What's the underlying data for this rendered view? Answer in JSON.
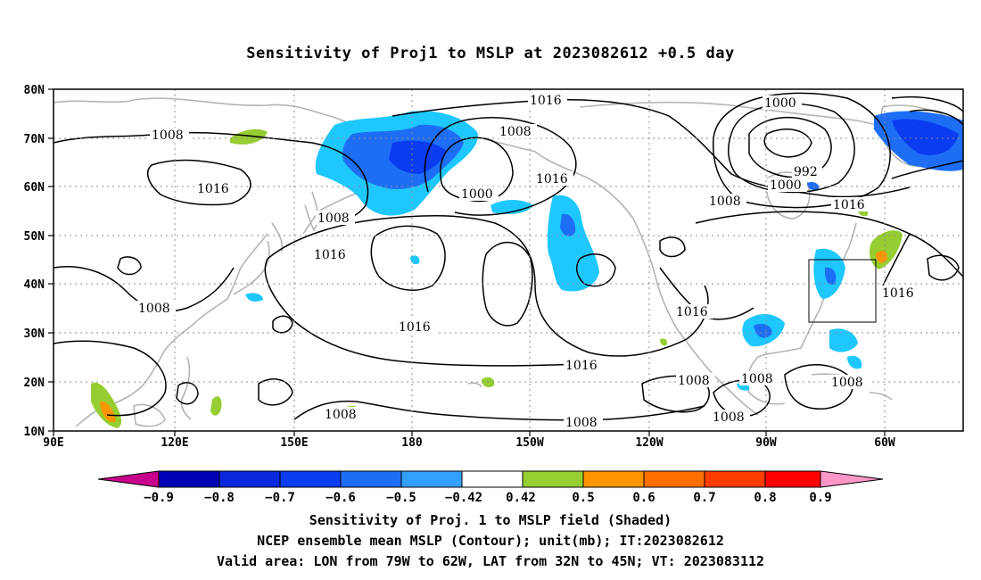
{
  "title": "Sensitivity of Proj1 to MSLP at 2023082612 +0.5 day",
  "map": {
    "lat_labels": [
      "80N",
      "70N",
      "60N",
      "50N",
      "40N",
      "30N",
      "20N",
      "10N"
    ],
    "lon_labels": [
      "90E",
      "120E",
      "150E",
      "180",
      "150W",
      "120W",
      "90W",
      "60W"
    ],
    "contour_labels": {
      "c1": "1016",
      "c2": "1008",
      "c3": "1008",
      "c4": "1016",
      "c5": "1000",
      "c6": "1016",
      "c7": "1000",
      "c8": "992",
      "c9": "1000",
      "c10": "1008",
      "c11": "1016",
      "c12": "1008",
      "c13": "1016",
      "c14": "1008",
      "c15": "1016",
      "c16": "1016",
      "c17": "1016",
      "c18": "1016",
      "c19": "1008",
      "c20": "1008",
      "c21": "1008",
      "c22": "1008",
      "c23": "1008",
      "c24": "1008"
    },
    "colors": {
      "coast": "#b4b4b4",
      "neg_strong": "#0a3cf0",
      "neg_mid": "#1e6ef5",
      "neg_weak": "#1ec8ff",
      "pos_weak": "#96cd32",
      "pos_mid": "#ff9600"
    }
  },
  "colorbar": {
    "labels": [
      "-0.9",
      "-0.8",
      "-0.7",
      "-0.6",
      "-0.5",
      "-0.42",
      "0.42",
      "0.5",
      "0.6",
      "0.7",
      "0.8",
      "0.9"
    ],
    "colors": [
      "#0000b4",
      "#0a28dc",
      "#0a3cf0",
      "#1e6ef5",
      "#32a0ff",
      "#1ec8ff",
      "#ffffff",
      "#96cd32",
      "#ff9600",
      "#ff6e00",
      "#ff3c00",
      "#ff0000"
    ],
    "low_color": "#c8008c",
    "high_color": "#ff96c8"
  },
  "caption": {
    "line1": "Sensitivity of Proj. 1 to MSLP field (Shaded)",
    "line2": "NCEP ensemble mean MSLP (Contour); unit(mb); IT:2023082612",
    "line3": "Valid area: LON from 79W to 62W, LAT from 32N to 45N; VT: 2023083112"
  }
}
